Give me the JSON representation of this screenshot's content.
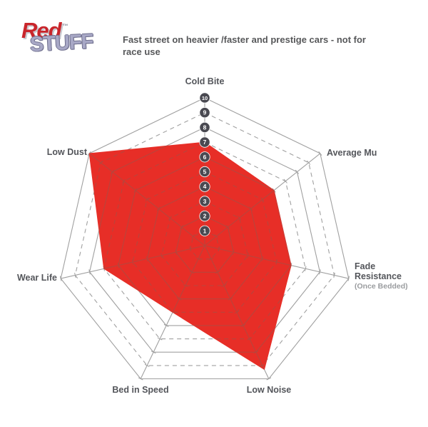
{
  "logo": {
    "red": "Red",
    "stuff": "STUFF",
    "tm": "™"
  },
  "header": {
    "tagline": "Fast street on heavier /faster and prestige cars - not for race use"
  },
  "chart_data": {
    "type": "radar",
    "title": "Redstuff brake pad performance profile",
    "categories": [
      "Cold Bite",
      "Average Mu",
      "Fade Resistance",
      "Low Noise",
      "Bed in Speed",
      "Wear Life",
      "Low Dust"
    ],
    "values": [
      7,
      6,
      6,
      9.3,
      5,
      7,
      10
    ],
    "fade_sublabel": "(Once Bedded)",
    "scale": {
      "min": 1,
      "max": 10,
      "ticks": [
        1,
        2,
        3,
        4,
        5,
        6,
        7,
        8,
        9,
        10
      ]
    },
    "layout": {
      "axes_count": 7,
      "start": "top",
      "direction": "clockwise",
      "grid": "even rings solid, odd rings dashed, radial spokes with unit tick marks",
      "scale_badges": "numbered circles 1-10 along vertical axis"
    },
    "colors": {
      "fill": "#e72e27",
      "grid": "#a0a0a0",
      "grid_on_fill": "#b8453c",
      "badge_fill": "#494951",
      "badge_text": "#ffffff",
      "label_text": "#54565b",
      "sublabel_text": "#9a9c9f"
    }
  }
}
